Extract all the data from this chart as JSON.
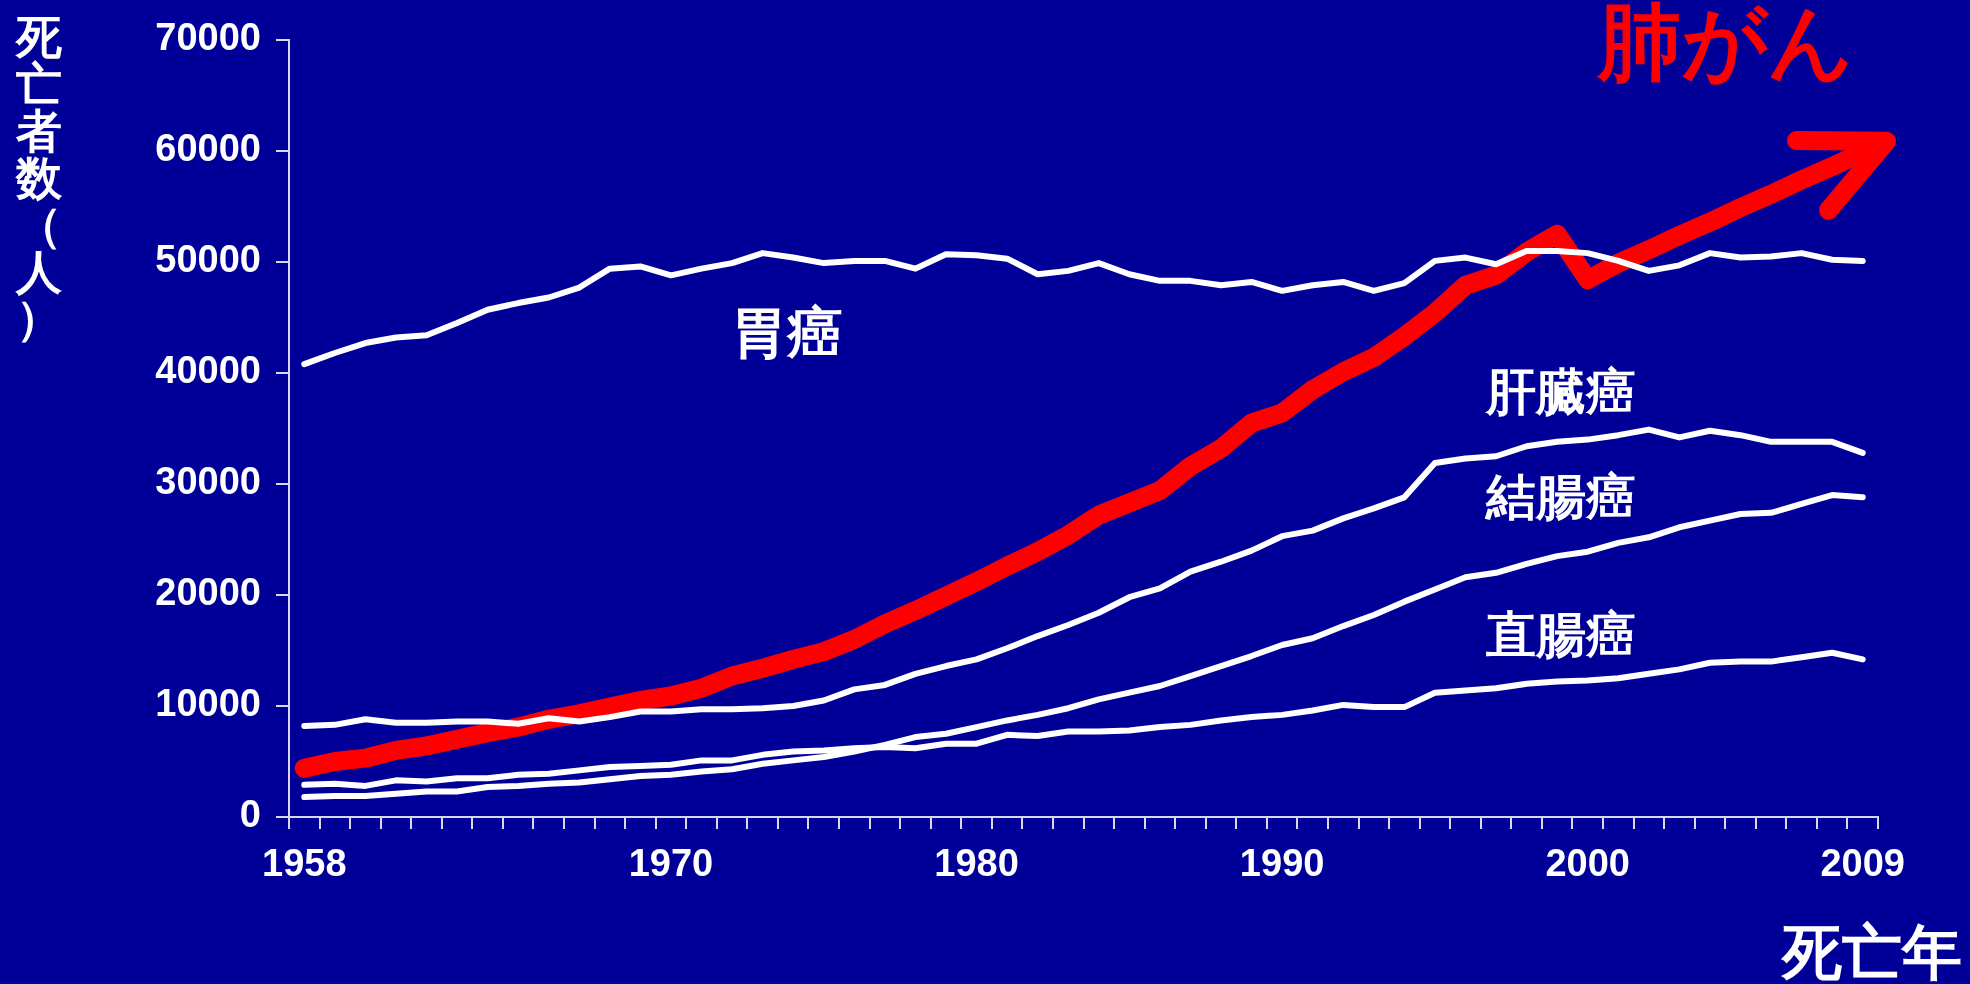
{
  "chart_data": {
    "type": "line",
    "xlabel": "死亡年",
    "ylabel": "死亡者数（人）",
    "categories": [
      "1958",
      null,
      null,
      null,
      null,
      null,
      null,
      null,
      null,
      null,
      null,
      null,
      "1970",
      null,
      null,
      null,
      null,
      null,
      null,
      null,
      null,
      null,
      "1980",
      null,
      null,
      null,
      null,
      null,
      null,
      null,
      null,
      null,
      "1990",
      null,
      null,
      null,
      null,
      null,
      null,
      null,
      null,
      null,
      "2000",
      null,
      null,
      null,
      null,
      null,
      null,
      null,
      null,
      "2009"
    ],
    "series": [
      {
        "name": "胃癌",
        "color": "#ffffff",
        "values": [
          40800,
          41800,
          42700,
          43200,
          43400,
          44500,
          45700,
          46300,
          46800,
          47700,
          49400,
          49600,
          48800,
          49400,
          49900,
          50800,
          50400,
          49900,
          50100,
          50100,
          49400,
          50700,
          50600,
          50300,
          48900,
          49200,
          49900,
          48900,
          48300,
          48300,
          47900,
          48200,
          47400,
          47900,
          48200,
          47400,
          48100,
          50100,
          50400,
          49800,
          51000,
          51000,
          50800,
          50100,
          49200,
          49700,
          50800,
          50400,
          50500,
          50800,
          50200,
          50100
        ]
      },
      {
        "name": "肺がん",
        "color": "#ff0000",
        "values": [
          4400,
          5000,
          5300,
          6000,
          6400,
          7000,
          7600,
          8100,
          8800,
          9300,
          9900,
          10500,
          10900,
          11600,
          12700,
          13400,
          14200,
          14900,
          16000,
          17400,
          18600,
          19900,
          21200,
          22600,
          23900,
          25400,
          27200,
          28300,
          29400,
          31600,
          33200,
          35500,
          36400,
          38500,
          40100,
          41400,
          43300,
          45400,
          47900,
          48800,
          50900,
          52500,
          48400,
          49900,
          51100,
          52400,
          53600,
          54900,
          56100,
          57400,
          58600,
          59900
        ]
      },
      {
        "name": "肝臓癌",
        "color": "#ffffff",
        "values": [
          8200,
          8300,
          8800,
          8500,
          8500,
          8600,
          8600,
          8400,
          8900,
          8600,
          9000,
          9500,
          9500,
          9700,
          9700,
          9800,
          10000,
          10500,
          11500,
          11900,
          12900,
          13600,
          14200,
          15200,
          16300,
          17300,
          18400,
          19800,
          20600,
          22100,
          23000,
          24000,
          25300,
          25800,
          26900,
          27800,
          28800,
          31900,
          32300,
          32500,
          33400,
          33800,
          34000,
          34400,
          34900,
          34200,
          34800,
          34400,
          33800,
          33800,
          33800,
          32800
        ]
      },
      {
        "name": "結腸癌",
        "color": "#ffffff",
        "values": [
          1800,
          1900,
          1900,
          2100,
          2300,
          2300,
          2700,
          2800,
          3000,
          3100,
          3400,
          3700,
          3800,
          4100,
          4300,
          4800,
          5100,
          5400,
          5900,
          6500,
          7200,
          7500,
          8100,
          8700,
          9200,
          9800,
          10600,
          11200,
          11800,
          12700,
          13600,
          14500,
          15500,
          16100,
          17200,
          18200,
          19400,
          20500,
          21600,
          22000,
          22800,
          23500,
          23900,
          24700,
          25200,
          26100,
          26700,
          27300,
          27400,
          28200,
          29000,
          28800
        ]
      },
      {
        "name": "直腸癌",
        "color": "#ffffff",
        "values": [
          2900,
          3000,
          2800,
          3300,
          3200,
          3500,
          3500,
          3800,
          3900,
          4200,
          4500,
          4600,
          4700,
          5100,
          5100,
          5600,
          5900,
          6000,
          6200,
          6300,
          6200,
          6600,
          6600,
          7400,
          7300,
          7700,
          7700,
          7800,
          8100,
          8300,
          8700,
          9000,
          9200,
          9600,
          10100,
          9900,
          9900,
          11200,
          11400,
          11600,
          12000,
          12200,
          12300,
          12500,
          12900,
          13300,
          13900,
          14000,
          14000,
          14400,
          14800,
          14200
        ]
      }
    ],
    "ylim": [
      0,
      70000
    ],
    "yticks": [
      0,
      10000,
      20000,
      30000,
      40000,
      50000,
      60000,
      70000
    ]
  }
}
